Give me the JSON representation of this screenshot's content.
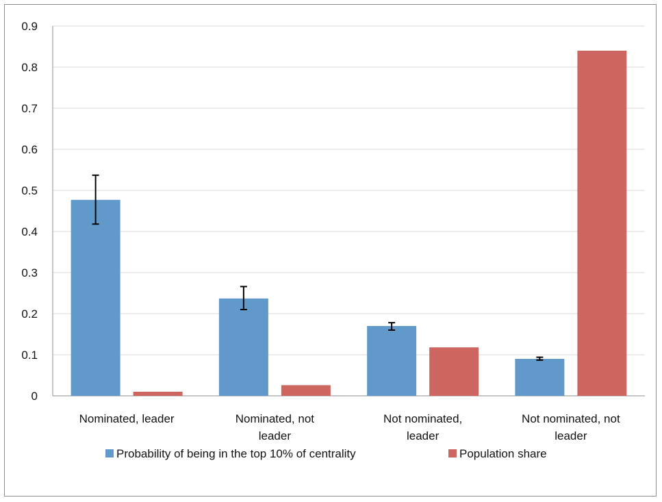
{
  "chart_data": {
    "type": "bar",
    "title": "",
    "xlabel": "",
    "ylabel": "",
    "ylim": [
      0,
      0.9
    ],
    "yticks": [
      "0",
      "0.1",
      "0.2",
      "0.3",
      "0.4",
      "0.5",
      "0.6",
      "0.7",
      "0.8",
      "0.9"
    ],
    "grid": true,
    "legend_position": "bottom",
    "categories": [
      [
        "Nominated, leader"
      ],
      [
        "Nominated, not",
        "leader"
      ],
      [
        "Not nominated,",
        "leader"
      ],
      [
        "Not nominated, not",
        "leader"
      ]
    ],
    "series": [
      {
        "name": "Probability of being in the top 10% of centrality",
        "color": "#6199cb",
        "values": [
          0.477,
          0.237,
          0.17,
          0.09
        ],
        "error_low": [
          0.418,
          0.21,
          0.16,
          0.087
        ],
        "error_high": [
          0.537,
          0.266,
          0.178,
          0.094
        ]
      },
      {
        "name": "Population share",
        "color": "#cd665e",
        "values": [
          0.01,
          0.026,
          0.118,
          0.84
        ]
      }
    ]
  }
}
